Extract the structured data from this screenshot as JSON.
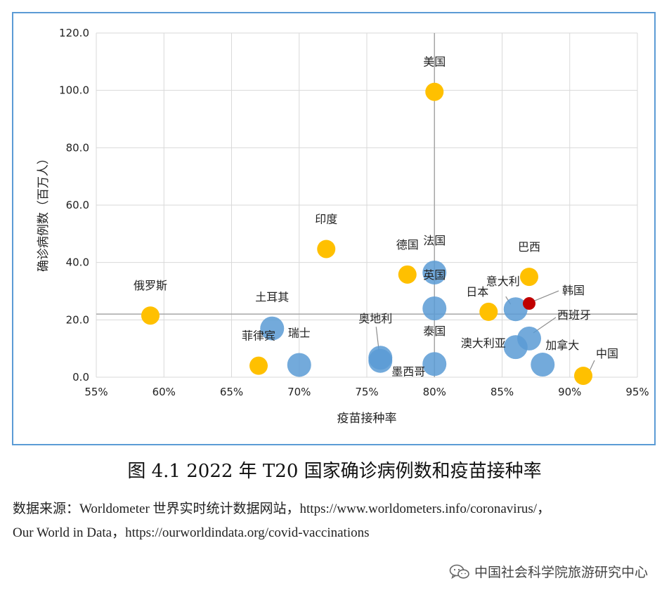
{
  "chart_data": {
    "type": "scatter",
    "title": "",
    "xlabel": "疫苗接种率",
    "ylabel": "确诊病例数（百万人）",
    "xlim": [
      55,
      95
    ],
    "ylim": [
      0,
      120
    ],
    "x_ticks": [
      "55%",
      "60%",
      "65%",
      "70%",
      "75%",
      "80%",
      "85%",
      "90%",
      "95%"
    ],
    "y_ticks": [
      "0.0",
      "20.0",
      "40.0",
      "60.0",
      "80.0",
      "100.0",
      "120.0"
    ],
    "grid": true,
    "reference_lines": {
      "x": 80,
      "y": 22
    },
    "colors": {
      "group_a": "#ffc000",
      "group_b": "#5b9bd5",
      "highlight": "#c00000",
      "grid": "#d9d9d9",
      "ref": "#a6a6a6"
    },
    "points": [
      {
        "label": "美国",
        "x": 80,
        "y": 99.5,
        "group": "group_a"
      },
      {
        "label": "印度",
        "x": 72,
        "y": 44.7,
        "group": "group_a"
      },
      {
        "label": "德国",
        "x": 78,
        "y": 35.8,
        "group": "group_a"
      },
      {
        "label": "巴西",
        "x": 87,
        "y": 35.0,
        "group": "group_a"
      },
      {
        "label": "俄罗斯",
        "x": 59,
        "y": 21.5,
        "group": "group_a"
      },
      {
        "label": "日本",
        "x": 84,
        "y": 22.8,
        "group": "group_a"
      },
      {
        "label": "菲律宾",
        "x": 67,
        "y": 4.0,
        "group": "group_a"
      },
      {
        "label": "中国",
        "x": 91,
        "y": 0.5,
        "group": "group_a"
      },
      {
        "label": "法国",
        "x": 80,
        "y": 36.5,
        "group": "group_b"
      },
      {
        "label": "英国",
        "x": 80,
        "y": 24.0,
        "group": "group_b"
      },
      {
        "label": "意大利",
        "x": 86,
        "y": 23.7,
        "group": "group_b"
      },
      {
        "label": "韩国",
        "x": 87,
        "y": 25.7,
        "group": "highlight"
      },
      {
        "label": "土耳其",
        "x": 68,
        "y": 17.0,
        "group": "group_b"
      },
      {
        "label": "瑞士",
        "x": 70,
        "y": 4.3,
        "group": "group_b"
      },
      {
        "label": "奥地利",
        "x": 76,
        "y": 6.8,
        "group": "group_b"
      },
      {
        "label": "墨西哥",
        "x": 76,
        "y": 5.7,
        "group": "group_b"
      },
      {
        "label": "泰国",
        "x": 80,
        "y": 4.6,
        "group": "group_b"
      },
      {
        "label": "西班牙",
        "x": 87,
        "y": 13.5,
        "group": "group_b"
      },
      {
        "label": "澳大利亚",
        "x": 86,
        "y": 10.5,
        "group": "group_b"
      },
      {
        "label": "加拿大",
        "x": 88,
        "y": 4.4,
        "group": "group_b"
      }
    ]
  },
  "caption": "图 4.1 2022 年 T20 国家确诊病例数和疫苗接种率",
  "source": {
    "line1": "数据来源：Worldometer 世界实时统计数据网站，https://www.worldometers.info/coronavirus/，",
    "line2": "Our World in Data，https://ourworldindata.org/covid-vaccinations"
  },
  "watermark": {
    "text": "中国社会科学院旅游研究中心",
    "icon": "wechat-icon"
  }
}
